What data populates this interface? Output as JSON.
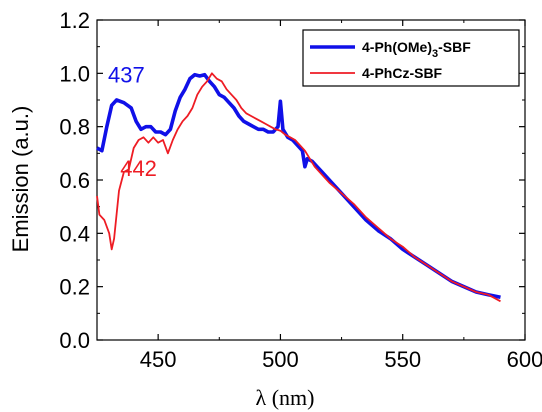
{
  "chart_data": {
    "type": "line",
    "xlabel": "λ (nm)",
    "ylabel": "Emission (a.u.)",
    "xlim": [
      425,
      600
    ],
    "ylim": [
      0.0,
      1.2
    ],
    "x_ticks": [
      "450",
      "500",
      "550",
      "600"
    ],
    "y_ticks": [
      "0.0",
      "0.2",
      "0.4",
      "0.6",
      "0.8",
      "1.0",
      "1.2"
    ],
    "grid": false,
    "legend_position": "top-right",
    "series": [
      {
        "name": "4-Ph(OMe)3-SBF",
        "name_main": "4-Ph(OMe)",
        "name_sub": "3",
        "name_tail": "-SBF",
        "color": "#1010e8",
        "points": [
          [
            425,
            0.72
          ],
          [
            427,
            0.71
          ],
          [
            429,
            0.8
          ],
          [
            431,
            0.88
          ],
          [
            433,
            0.9
          ],
          [
            436,
            0.89
          ],
          [
            439,
            0.87
          ],
          [
            441,
            0.82
          ],
          [
            443,
            0.79
          ],
          [
            445,
            0.8
          ],
          [
            447,
            0.8
          ],
          [
            449,
            0.78
          ],
          [
            451,
            0.78
          ],
          [
            453,
            0.77
          ],
          [
            455,
            0.79
          ],
          [
            457,
            0.86
          ],
          [
            459,
            0.91
          ],
          [
            461,
            0.94
          ],
          [
            463,
            0.98
          ],
          [
            465,
            0.995
          ],
          [
            467,
            0.99
          ],
          [
            469,
            0.995
          ],
          [
            471,
            0.97
          ],
          [
            473,
            0.95
          ],
          [
            475,
            0.92
          ],
          [
            477,
            0.91
          ],
          [
            479,
            0.89
          ],
          [
            481,
            0.87
          ],
          [
            483,
            0.84
          ],
          [
            485,
            0.82
          ],
          [
            487,
            0.81
          ],
          [
            489,
            0.8
          ],
          [
            491,
            0.79
          ],
          [
            493,
            0.79
          ],
          [
            495,
            0.78
          ],
          [
            497,
            0.78
          ],
          [
            499,
            0.8
          ],
          [
            500,
            0.895
          ],
          [
            501,
            0.79
          ],
          [
            503,
            0.76
          ],
          [
            505,
            0.75
          ],
          [
            507,
            0.73
          ],
          [
            509,
            0.71
          ],
          [
            510,
            0.65
          ],
          [
            511,
            0.68
          ],
          [
            513,
            0.67
          ],
          [
            515,
            0.65
          ],
          [
            517,
            0.63
          ],
          [
            519,
            0.61
          ],
          [
            521,
            0.59
          ],
          [
            525,
            0.55
          ],
          [
            530,
            0.5
          ],
          [
            535,
            0.45
          ],
          [
            540,
            0.41
          ],
          [
            545,
            0.38
          ],
          [
            550,
            0.34
          ],
          [
            555,
            0.31
          ],
          [
            560,
            0.28
          ],
          [
            565,
            0.25
          ],
          [
            570,
            0.22
          ],
          [
            575,
            0.2
          ],
          [
            580,
            0.18
          ],
          [
            585,
            0.17
          ],
          [
            590,
            0.16
          ]
        ],
        "peak_label": "437",
        "peak_label_at": [
          437,
          0.965
        ]
      },
      {
        "name": "4-PhCz-SBF",
        "name_main": "4-PhCz-SBF",
        "name_sub": "",
        "name_tail": "",
        "color": "#ee1c24",
        "points": [
          [
            425,
            0.54
          ],
          [
            426,
            0.47
          ],
          [
            428,
            0.45
          ],
          [
            430,
            0.4
          ],
          [
            431,
            0.34
          ],
          [
            432,
            0.38
          ],
          [
            434,
            0.56
          ],
          [
            436,
            0.63
          ],
          [
            438,
            0.64
          ],
          [
            440,
            0.72
          ],
          [
            442,
            0.75
          ],
          [
            444,
            0.76
          ],
          [
            446,
            0.74
          ],
          [
            448,
            0.76
          ],
          [
            450,
            0.74
          ],
          [
            452,
            0.75
          ],
          [
            454,
            0.7
          ],
          [
            456,
            0.75
          ],
          [
            458,
            0.79
          ],
          [
            460,
            0.82
          ],
          [
            462,
            0.84
          ],
          [
            464,
            0.87
          ],
          [
            466,
            0.92
          ],
          [
            468,
            0.95
          ],
          [
            470,
            0.97
          ],
          [
            472,
            1.0
          ],
          [
            474,
            0.98
          ],
          [
            476,
            0.97
          ],
          [
            478,
            0.94
          ],
          [
            480,
            0.92
          ],
          [
            482,
            0.9
          ],
          [
            484,
            0.87
          ],
          [
            486,
            0.85
          ],
          [
            488,
            0.84
          ],
          [
            490,
            0.83
          ],
          [
            492,
            0.82
          ],
          [
            494,
            0.81
          ],
          [
            496,
            0.8
          ],
          [
            498,
            0.79
          ],
          [
            500,
            0.785
          ],
          [
            502,
            0.77
          ],
          [
            504,
            0.76
          ],
          [
            506,
            0.75
          ],
          [
            508,
            0.73
          ],
          [
            510,
            0.71
          ],
          [
            512,
            0.68
          ],
          [
            514,
            0.65
          ],
          [
            517,
            0.62
          ],
          [
            520,
            0.59
          ],
          [
            525,
            0.55
          ],
          [
            530,
            0.51
          ],
          [
            535,
            0.46
          ],
          [
            540,
            0.42
          ],
          [
            545,
            0.38
          ],
          [
            550,
            0.35
          ],
          [
            555,
            0.31
          ],
          [
            560,
            0.28
          ],
          [
            565,
            0.25
          ],
          [
            570,
            0.22
          ],
          [
            575,
            0.2
          ],
          [
            580,
            0.18
          ],
          [
            585,
            0.17
          ],
          [
            590,
            0.145
          ]
        ],
        "peak_label": "442",
        "peak_label_at": [
          442,
          0.615
        ]
      }
    ]
  }
}
